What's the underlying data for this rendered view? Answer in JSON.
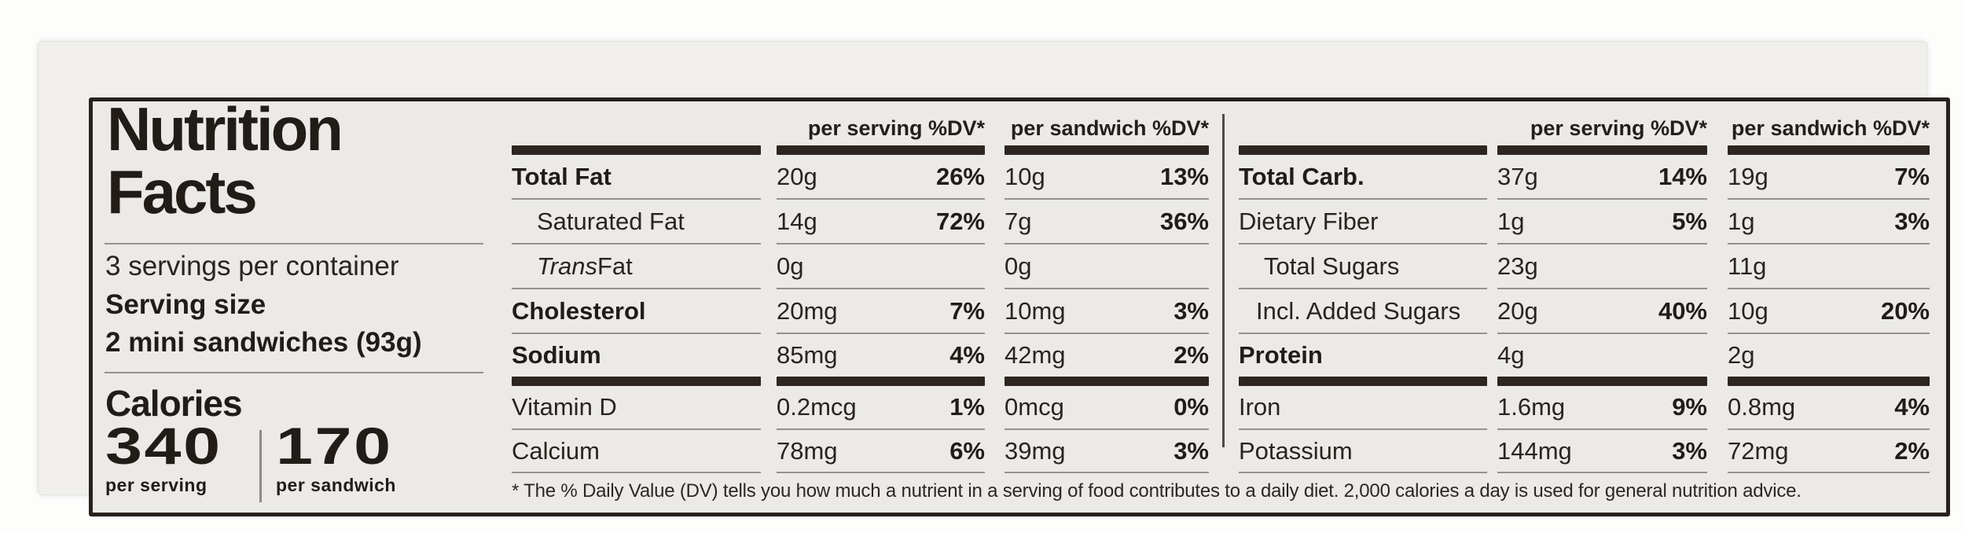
{
  "label": {
    "title_line1": "Nutrition",
    "title_line2": "Facts",
    "servings_per_container": "3 servings per container",
    "serving_size_label": "Serving size",
    "serving_size_value": "2 mini sandwiches (93g)",
    "calories_label": "Calories",
    "calories": [
      {
        "value": "340",
        "unit": "per serving"
      },
      {
        "value": "170",
        "unit": "per sandwich"
      }
    ],
    "column_headers": {
      "serving": "per serving %DV*",
      "sandwich": "per sandwich %DV*"
    },
    "panels": [
      {
        "rows": [
          {
            "name": "Total Fat",
            "bold": true,
            "indent": 0,
            "serving": {
              "amount": "20g",
              "dv": "26%"
            },
            "sandwich": {
              "amount": "10g",
              "dv": "13%"
            }
          },
          {
            "name": "Saturated Fat",
            "bold": false,
            "indent": 1,
            "serving": {
              "amount": "14g",
              "dv": "72%"
            },
            "sandwich": {
              "amount": "7g",
              "dv": "36%"
            }
          },
          {
            "name_parts": [
              {
                "text": "Trans",
                "italic": true
              },
              {
                "text": " Fat"
              }
            ],
            "bold": false,
            "indent": 1,
            "serving": {
              "amount": "0g",
              "dv": ""
            },
            "sandwich": {
              "amount": "0g",
              "dv": ""
            }
          },
          {
            "name": "Cholesterol",
            "bold": true,
            "indent": 0,
            "serving": {
              "amount": "20mg",
              "dv": "7%"
            },
            "sandwich": {
              "amount": "10mg",
              "dv": "3%"
            }
          },
          {
            "name": "Sodium",
            "bold": true,
            "indent": 0,
            "serving": {
              "amount": "85mg",
              "dv": "4%"
            },
            "sandwich": {
              "amount": "42mg",
              "dv": "2%"
            }
          },
          {
            "name": "Vitamin D",
            "bold": false,
            "indent": 0,
            "serving": {
              "amount": "0.2mcg",
              "dv": "1%"
            },
            "sandwich": {
              "amount": "0mcg",
              "dv": "0%"
            }
          },
          {
            "name": "Calcium",
            "bold": false,
            "indent": 0,
            "serving": {
              "amount": "78mg",
              "dv": "6%"
            },
            "sandwich": {
              "amount": "39mg",
              "dv": "3%"
            }
          }
        ]
      },
      {
        "rows": [
          {
            "name": "Total Carb.",
            "bold": true,
            "indent": 0,
            "serving": {
              "amount": "37g",
              "dv": "14%"
            },
            "sandwich": {
              "amount": "19g",
              "dv": "7%"
            }
          },
          {
            "name": "Dietary Fiber",
            "bold": false,
            "indent": 0,
            "serving": {
              "amount": "1g",
              "dv": "5%"
            },
            "sandwich": {
              "amount": "1g",
              "dv": "3%"
            }
          },
          {
            "name": "Total Sugars",
            "bold": false,
            "indent": 1,
            "serving": {
              "amount": "23g",
              "dv": ""
            },
            "sandwich": {
              "amount": "11g",
              "dv": ""
            }
          },
          {
            "name": "Incl. Added Sugars",
            "bold": false,
            "indent": 2,
            "serving": {
              "amount": "20g",
              "dv": "40%"
            },
            "sandwich": {
              "amount": "10g",
              "dv": "20%"
            }
          },
          {
            "name": "Protein",
            "bold": true,
            "indent": 0,
            "serving": {
              "amount": "4g",
              "dv": ""
            },
            "sandwich": {
              "amount": "2g",
              "dv": ""
            }
          },
          {
            "name": "Iron",
            "bold": false,
            "indent": 0,
            "serving": {
              "amount": "1.6mg",
              "dv": "9%"
            },
            "sandwich": {
              "amount": "0.8mg",
              "dv": "4%"
            }
          },
          {
            "name": "Potassium",
            "bold": false,
            "indent": 0,
            "serving": {
              "amount": "144mg",
              "dv": "3%"
            },
            "sandwich": {
              "amount": "72mg",
              "dv": "2%"
            }
          }
        ]
      }
    ],
    "footnote": "* The % Daily Value (DV) tells you how much a nutrient in a serving of food contributes to a daily diet. 2,000 calories a day is used for general nutrition advice.",
    "colors": {
      "label_background": "#ebeae6",
      "ink": "#211c18",
      "thick_bar": "#2c2520",
      "hairline": "#94918c"
    }
  }
}
